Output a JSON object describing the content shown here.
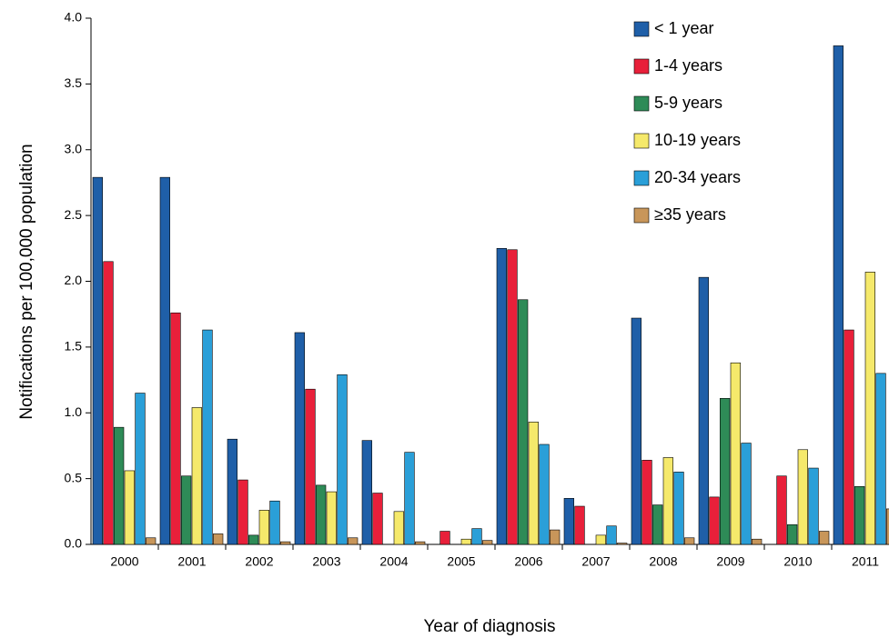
{
  "chart_data": {
    "type": "bar",
    "x_label": "Year of diagnosis",
    "y_label": "Notifications per 100,000 population",
    "categories": [
      "2000",
      "2001",
      "2002",
      "2003",
      "2004",
      "2005",
      "2006",
      "2007",
      "2008",
      "2009",
      "2010",
      "2011"
    ],
    "series": [
      {
        "name": "< 1 year",
        "color": "#1f5fa8",
        "values": [
          2.79,
          2.79,
          0.8,
          1.61,
          0.79,
          0,
          2.25,
          0.35,
          1.72,
          2.03,
          0,
          3.79
        ]
      },
      {
        "name": "1-4 years",
        "color": "#e8203a",
        "values": [
          2.15,
          1.76,
          0.49,
          1.18,
          0.39,
          0.1,
          2.24,
          0.29,
          0.64,
          0.36,
          0.52,
          1.63
        ]
      },
      {
        "name": "5-9 years",
        "color": "#2e8b57",
        "values": [
          0.89,
          0.52,
          0.07,
          0.45,
          0,
          0,
          1.86,
          0,
          0.3,
          1.11,
          0.15,
          0.44
        ]
      },
      {
        "name": "10-19 years",
        "color": "#f5e96b",
        "values": [
          0.56,
          1.04,
          0.26,
          0.4,
          0.25,
          0.04,
          0.93,
          0.07,
          0.66,
          1.38,
          0.72,
          2.07
        ]
      },
      {
        "name": "20-34 years",
        "color": "#2a9fd8",
        "values": [
          1.15,
          1.63,
          0.33,
          1.29,
          0.7,
          0.12,
          0.76,
          0.14,
          0.55,
          0.77,
          0.58,
          1.3
        ]
      },
      {
        "name": "≥35 years",
        "color": "#c8965a",
        "values": [
          0.05,
          0.08,
          0.02,
          0.05,
          0.02,
          0.03,
          0.11,
          0.01,
          0.05,
          0.04,
          0.1,
          0.27
        ]
      }
    ],
    "ylim": [
      0,
      4
    ],
    "yticks": [
      {
        "value": 0,
        "label": "0.0"
      },
      0.5,
      {
        "value": 1,
        "label": "1.0"
      },
      1.5,
      {
        "value": 2,
        "label": "2.0"
      },
      2.5,
      {
        "value": 3,
        "label": "3.0"
      },
      3.5,
      {
        "value": 4,
        "label": "4.0"
      }
    ],
    "legend_position": "upper right"
  }
}
